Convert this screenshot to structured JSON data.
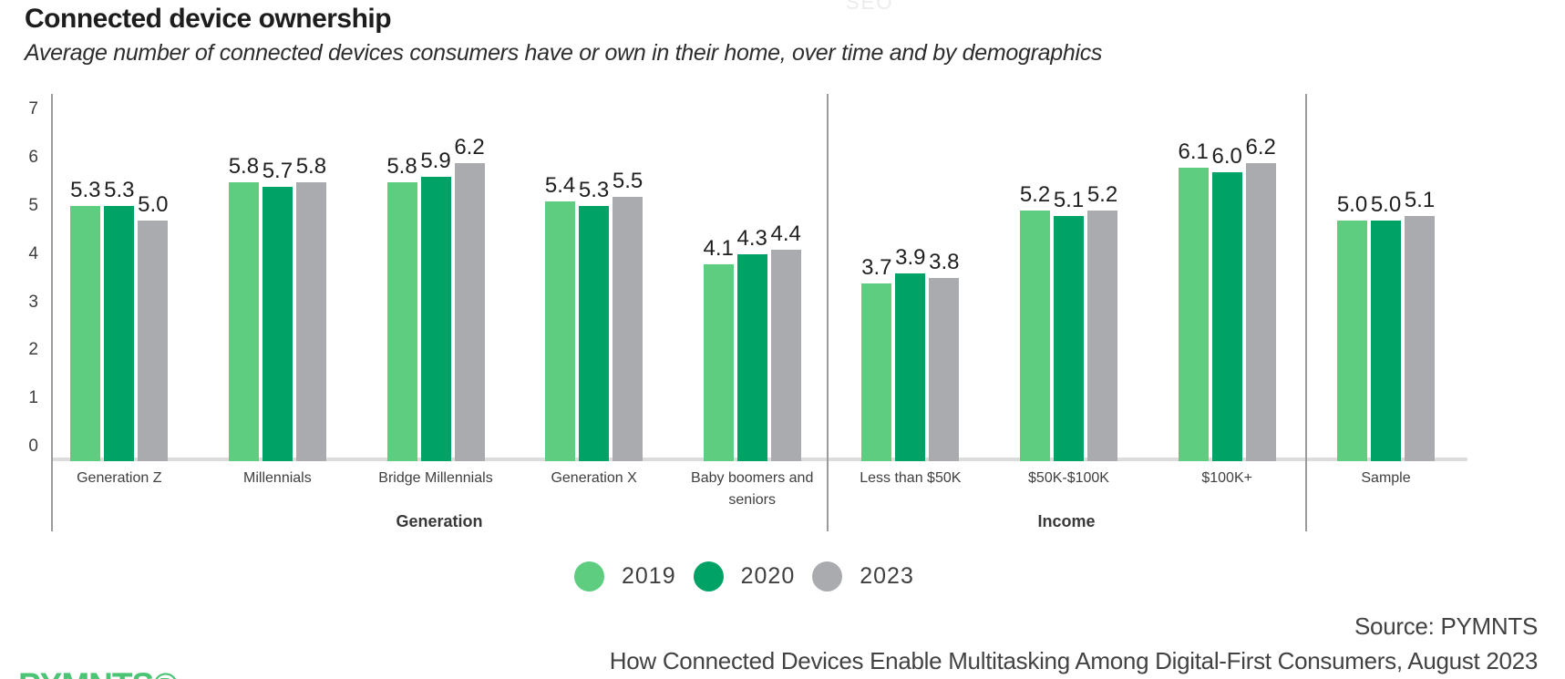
{
  "watermark": "SEO",
  "header": {
    "title": "Connected device ownership",
    "subtitle": "Average number of connected devices consumers have or own in their home, over time and by demographics"
  },
  "chart_data": {
    "type": "bar",
    "title": "Connected device ownership",
    "subtitle": "Average number of connected devices consumers have or own in their home, over time and by demographics",
    "ylabel": "",
    "xlabel": "",
    "ylim": [
      0,
      7
    ],
    "yticks": [
      0,
      1,
      2,
      3,
      4,
      5,
      6,
      7
    ],
    "grid": false,
    "legend_position": "bottom-center",
    "value_label_format": "one-decimal",
    "series": [
      {
        "name": "2019",
        "color": "#5ecd80"
      },
      {
        "name": "2020",
        "color": "#00a266"
      },
      {
        "name": "2023",
        "color": "#a9abaf"
      }
    ],
    "sections": [
      {
        "label": "Generation",
        "groups": [
          {
            "category": "Generation Z",
            "values": [
              5.3,
              5.3,
              5.0
            ]
          },
          {
            "category": "Millennials",
            "values": [
              5.8,
              5.7,
              5.8
            ]
          },
          {
            "category": "Bridge Millennials",
            "values": [
              5.8,
              5.9,
              6.2
            ]
          },
          {
            "category": "Generation X",
            "values": [
              5.4,
              5.3,
              5.5
            ]
          },
          {
            "category": "Baby boomers and seniors",
            "values": [
              4.1,
              4.3,
              4.4
            ]
          }
        ]
      },
      {
        "label": "Income",
        "groups": [
          {
            "category": "Less than $50K",
            "values": [
              3.7,
              3.9,
              3.8
            ]
          },
          {
            "category": "$50K-$100K",
            "values": [
              5.2,
              5.1,
              5.2
            ]
          },
          {
            "category": "$100K+",
            "values": [
              6.1,
              6.0,
              6.2
            ]
          }
        ]
      },
      {
        "label": "",
        "groups": [
          {
            "category": "Sample",
            "values": [
              5.0,
              5.0,
              5.1
            ]
          }
        ]
      }
    ]
  },
  "footer": {
    "source_line1": "Source: PYMNTS",
    "source_line2": "How Connected Devices Enable Multitasking Among Digital-First Consumers, August 2023",
    "logo_text": "PYMNTS®"
  }
}
